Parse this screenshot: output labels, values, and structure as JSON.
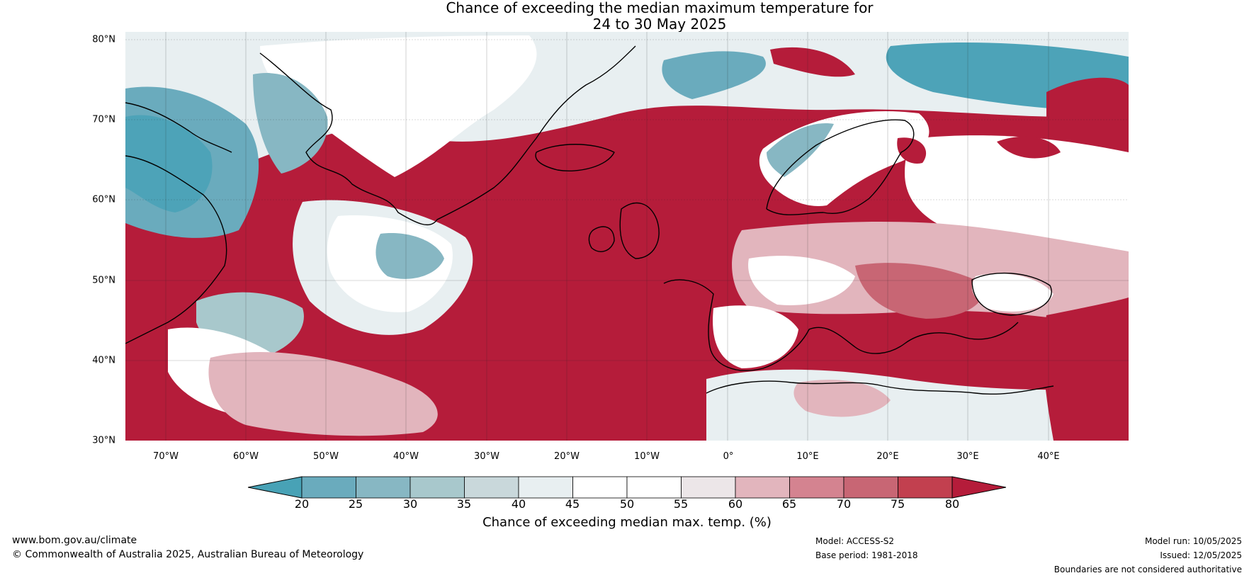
{
  "title": {
    "line1": "Chance of exceeding the median maximum temperature for",
    "line2": "24 to 30 May 2025"
  },
  "map": {
    "lat_labels": [
      "80°N",
      "70°N",
      "60°N",
      "50°N",
      "40°N",
      "30°N"
    ],
    "lat_values": [
      80,
      70,
      60,
      50,
      40,
      30
    ],
    "lon_labels": [
      "70°W",
      "60°W",
      "50°W",
      "40°W",
      "30°W",
      "20°W",
      "10°W",
      "0°",
      "10°E",
      "20°E",
      "30°E",
      "40°E"
    ],
    "lon_values": [
      -70,
      -60,
      -50,
      -40,
      -30,
      -20,
      -10,
      0,
      10,
      20,
      30,
      40
    ],
    "extent": {
      "lon_min": -75,
      "lon_max": 50,
      "lat_min": 30,
      "lat_max": 81
    },
    "ocean_color": "#b51c3a",
    "land_default_color": "#e9e2e4",
    "coastline_color": "#000000",
    "border_color": "#808080"
  },
  "colorbar": {
    "ticks": [
      "20",
      "25",
      "30",
      "35",
      "40",
      "45",
      "50",
      "55",
      "60",
      "65",
      "70",
      "75",
      "80"
    ],
    "colors": [
      "#4da3b8",
      "#6aabbd",
      "#87b7c3",
      "#a8c8cc",
      "#c9d8db",
      "#e8eff1",
      "#ffffff",
      "#ffffff",
      "#ece6e8",
      "#e2b5bd",
      "#d48390",
      "#c86674",
      "#c2404f"
    ],
    "under_color": "#48a2b6",
    "over_color": "#b51c3a",
    "title": "Chance of exceeding median max. temp. (%)"
  },
  "footer": {
    "url": "www.bom.gov.au/climate",
    "copyright": "© Commonwealth of Australia 2025, Australian Bureau of Meteorology",
    "model": "Model: ACCESS-S2",
    "base_period": "Base period: 1981-2018",
    "model_run": "Model run: 10/05/2025",
    "issued": "Issued: 12/05/2025",
    "disclaimer": "Boundaries are not considered authoritative"
  }
}
